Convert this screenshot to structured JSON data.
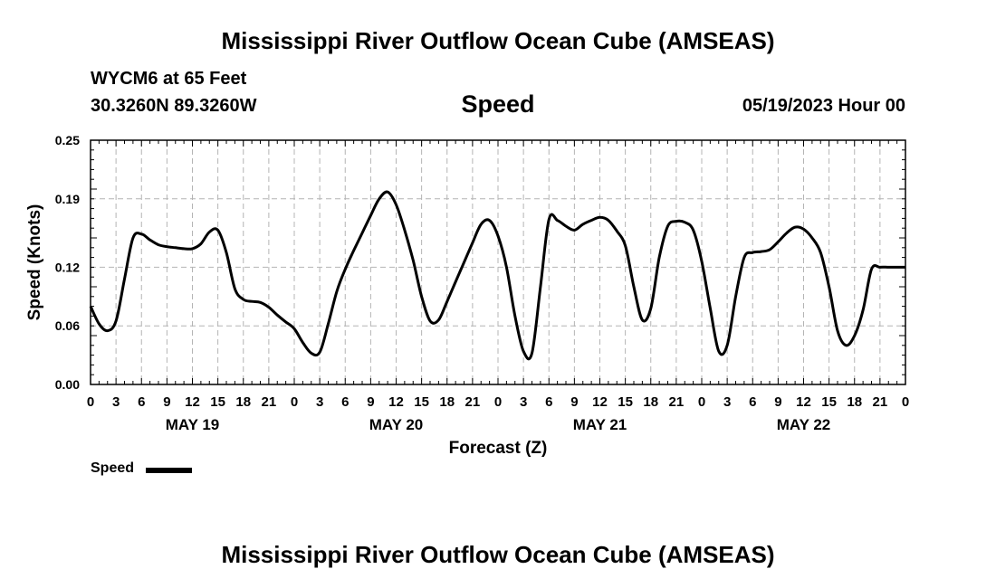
{
  "header": {
    "title": "Mississippi River Outflow Ocean Cube (AMSEAS)",
    "station": "WYCM6 at 65 Feet",
    "coords": "30.3260N  89.3260W",
    "parameter": "Speed",
    "datetime": "05/19/2023 Hour 00"
  },
  "footer": {
    "title": "Mississippi River Outflow Ocean Cube (AMSEAS)"
  },
  "legend": {
    "label": "Speed",
    "color": "#000000"
  },
  "chart_data": {
    "type": "line",
    "title": "Speed",
    "xlabel": "Forecast (Z)",
    "ylabel": "Speed (Knots)",
    "xlim": [
      0,
      96
    ],
    "ylim": [
      0,
      0.25
    ],
    "grid": true,
    "y_ticks": [
      0,
      0.06,
      0.12,
      0.19,
      0.25
    ],
    "y_tick_labels": [
      "0.00",
      "0.06",
      "0.12",
      "0.19",
      "0.25"
    ],
    "x_ticks": [
      0,
      3,
      6,
      9,
      12,
      15,
      18,
      21,
      24,
      27,
      30,
      33,
      36,
      39,
      42,
      45,
      48,
      51,
      54,
      57,
      60,
      63,
      66,
      69,
      72,
      75,
      78,
      81,
      84,
      87,
      90,
      93,
      96
    ],
    "x_tick_labels": [
      "0",
      "3",
      "6",
      "9",
      "12",
      "15",
      "18",
      "21",
      "0",
      "3",
      "6",
      "9",
      "12",
      "15",
      "18",
      "21",
      "0",
      "3",
      "6",
      "9",
      "12",
      "15",
      "18",
      "21",
      "0",
      "3",
      "6",
      "9",
      "12",
      "15",
      "18",
      "21",
      "0"
    ],
    "day_labels": [
      {
        "x": 12,
        "label": "MAY 19"
      },
      {
        "x": 36,
        "label": "MAY 20"
      },
      {
        "x": 60,
        "label": "MAY 21"
      },
      {
        "x": 84,
        "label": "MAY 22"
      }
    ],
    "series": [
      {
        "name": "Speed",
        "x": [
          0,
          1,
          2,
          3,
          4,
          5,
          6,
          7,
          8,
          9,
          10,
          11,
          12,
          13,
          14,
          15,
          16,
          17,
          18,
          19,
          20,
          21,
          22,
          23,
          24,
          25,
          26,
          27,
          28,
          29,
          30,
          31,
          32,
          33,
          34,
          35,
          36,
          37,
          38,
          39,
          40,
          41,
          42,
          43,
          44,
          45,
          46,
          47,
          48,
          49,
          50,
          51,
          52,
          53,
          54,
          55,
          56,
          57,
          58,
          59,
          60,
          61,
          62,
          63,
          64,
          65,
          66,
          67,
          68,
          69,
          70,
          71,
          72,
          73,
          74,
          75,
          76,
          77,
          78,
          79,
          80,
          81,
          82,
          83,
          84,
          85,
          86,
          87,
          88,
          89,
          90,
          91,
          92,
          93,
          94,
          95,
          96
        ],
        "values": [
          0.08,
          0.062,
          0.055,
          0.065,
          0.108,
          0.15,
          0.154,
          0.148,
          0.143,
          0.141,
          0.14,
          0.139,
          0.139,
          0.144,
          0.156,
          0.158,
          0.135,
          0.098,
          0.087,
          0.085,
          0.084,
          0.079,
          0.071,
          0.064,
          0.057,
          0.043,
          0.032,
          0.033,
          0.062,
          0.095,
          0.118,
          0.137,
          0.155,
          0.173,
          0.19,
          0.197,
          0.184,
          0.158,
          0.127,
          0.09,
          0.065,
          0.066,
          0.085,
          0.105,
          0.125,
          0.145,
          0.164,
          0.168,
          0.152,
          0.12,
          0.07,
          0.034,
          0.032,
          0.1,
          0.169,
          0.168,
          0.162,
          0.158,
          0.164,
          0.168,
          0.171,
          0.168,
          0.157,
          0.142,
          0.1,
          0.066,
          0.078,
          0.13,
          0.162,
          0.167,
          0.166,
          0.158,
          0.126,
          0.078,
          0.034,
          0.04,
          0.09,
          0.13,
          0.135,
          0.136,
          0.138,
          0.146,
          0.155,
          0.161,
          0.159,
          0.15,
          0.135,
          0.1,
          0.055,
          0.04,
          0.05,
          0.076,
          0.118,
          0.12,
          0.12,
          0.12,
          0.12
        ]
      }
    ]
  }
}
